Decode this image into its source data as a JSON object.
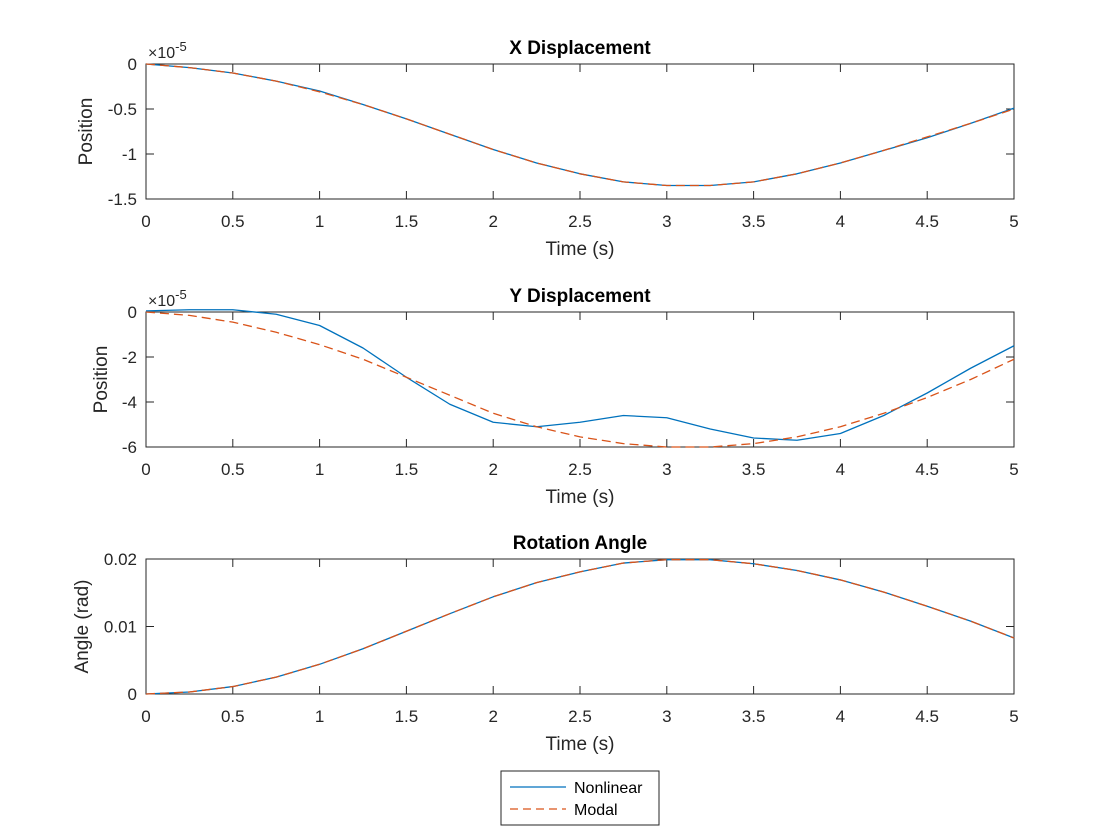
{
  "colors": {
    "nonlinear": "#0072BD",
    "modal": "#D95319",
    "axis": "#262626"
  },
  "legend": {
    "placement": "bottom-center",
    "entries": [
      "Nonlinear",
      "Modal"
    ]
  },
  "chart_data": [
    {
      "type": "line",
      "title": "X Displacement",
      "xlabel": "Time (s)",
      "ylabel": "Position",
      "exponent_label": "×10",
      "exponent_power": "-5",
      "xlim": [
        0,
        5
      ],
      "ylim": [
        -1.5,
        0
      ],
      "x_ticks": [
        0,
        0.5,
        1,
        1.5,
        2,
        2.5,
        3,
        3.5,
        4,
        4.5,
        5
      ],
      "x_tick_labels": [
        "0",
        "0.5",
        "1",
        "1.5",
        "2",
        "2.5",
        "3",
        "3.5",
        "4",
        "4.5",
        "5"
      ],
      "y_ticks": [
        0,
        -0.5,
        -1,
        -1.5
      ],
      "y_tick_labels": [
        "0",
        "-0.5",
        "-1",
        "-1.5"
      ],
      "x": [
        0,
        0.25,
        0.5,
        0.75,
        1,
        1.25,
        1.5,
        1.75,
        2,
        2.25,
        2.5,
        2.75,
        3,
        3.25,
        3.5,
        3.75,
        4,
        4.25,
        4.5,
        4.75,
        5
      ],
      "series": [
        {
          "name": "Nonlinear",
          "style": "solid",
          "values": [
            0,
            -0.04,
            -0.1,
            -0.19,
            -0.3,
            -0.45,
            -0.61,
            -0.78,
            -0.95,
            -1.1,
            -1.22,
            -1.31,
            -1.35,
            -1.35,
            -1.31,
            -1.22,
            -1.1,
            -0.96,
            -0.82,
            -0.66,
            -0.49
          ]
        },
        {
          "name": "Modal",
          "style": "dashed",
          "values": [
            0,
            -0.04,
            -0.1,
            -0.19,
            -0.31,
            -0.45,
            -0.61,
            -0.78,
            -0.95,
            -1.1,
            -1.22,
            -1.31,
            -1.35,
            -1.35,
            -1.31,
            -1.22,
            -1.1,
            -0.96,
            -0.81,
            -0.66,
            -0.5
          ]
        }
      ]
    },
    {
      "type": "line",
      "title": "Y Displacement",
      "xlabel": "Time (s)",
      "ylabel": "Position",
      "exponent_label": "×10",
      "exponent_power": "-5",
      "xlim": [
        0,
        5
      ],
      "ylim": [
        -6,
        0
      ],
      "x_ticks": [
        0,
        0.5,
        1,
        1.5,
        2,
        2.5,
        3,
        3.5,
        4,
        4.5,
        5
      ],
      "x_tick_labels": [
        "0",
        "0.5",
        "1",
        "1.5",
        "2",
        "2.5",
        "3",
        "3.5",
        "4",
        "4.5",
        "5"
      ],
      "y_ticks": [
        0,
        -2,
        -4,
        -6
      ],
      "y_tick_labels": [
        "0",
        "-2",
        "-4",
        "-6"
      ],
      "x": [
        0,
        0.25,
        0.5,
        0.75,
        1,
        1.25,
        1.5,
        1.75,
        2,
        2.25,
        2.5,
        2.75,
        3,
        3.25,
        3.5,
        3.75,
        4,
        4.25,
        4.5,
        4.75,
        5
      ],
      "series": [
        {
          "name": "Nonlinear",
          "style": "solid",
          "values": [
            0.05,
            0.1,
            0.1,
            -0.1,
            -0.6,
            -1.6,
            -2.9,
            -4.1,
            -4.9,
            -5.1,
            -4.9,
            -4.6,
            -4.7,
            -5.2,
            -5.6,
            -5.7,
            -5.4,
            -4.6,
            -3.6,
            -2.5,
            -1.5
          ]
        },
        {
          "name": "Modal",
          "style": "dashed",
          "values": [
            0,
            -0.15,
            -0.45,
            -0.9,
            -1.45,
            -2.1,
            -2.9,
            -3.7,
            -4.5,
            -5.1,
            -5.55,
            -5.85,
            -6,
            -6,
            -5.85,
            -5.55,
            -5.1,
            -4.5,
            -3.8,
            -3.0,
            -2.1
          ]
        }
      ]
    },
    {
      "type": "line",
      "title": "Rotation Angle",
      "xlabel": "Time (s)",
      "ylabel": "Angle (rad)",
      "xlim": [
        0,
        5
      ],
      "ylim": [
        0,
        0.02
      ],
      "x_ticks": [
        0,
        0.5,
        1,
        1.5,
        2,
        2.5,
        3,
        3.5,
        4,
        4.5,
        5
      ],
      "x_tick_labels": [
        "0",
        "0.5",
        "1",
        "1.5",
        "2",
        "2.5",
        "3",
        "3.5",
        "4",
        "4.5",
        "5"
      ],
      "y_ticks": [
        0,
        0.01,
        0.02
      ],
      "y_tick_labels": [
        "0",
        "0.01",
        "0.02"
      ],
      "x": [
        0,
        0.25,
        0.5,
        0.75,
        1,
        1.25,
        1.5,
        1.75,
        2,
        2.25,
        2.5,
        2.75,
        3,
        3.25,
        3.5,
        3.75,
        4,
        4.25,
        4.5,
        4.75,
        5
      ],
      "series": [
        {
          "name": "Nonlinear",
          "style": "solid",
          "values": [
            0,
            0.0003,
            0.0011,
            0.0025,
            0.0044,
            0.0067,
            0.0093,
            0.0119,
            0.0144,
            0.0165,
            0.0181,
            0.0194,
            0.0199,
            0.0199,
            0.0193,
            0.0183,
            0.0169,
            0.0151,
            0.013,
            0.0108,
            0.0083
          ]
        },
        {
          "name": "Modal",
          "style": "dashed",
          "values": [
            0,
            0.0003,
            0.0011,
            0.0025,
            0.0044,
            0.0067,
            0.0093,
            0.0119,
            0.0144,
            0.0165,
            0.0181,
            0.0194,
            0.0199,
            0.0199,
            0.0193,
            0.0183,
            0.0169,
            0.0151,
            0.013,
            0.0108,
            0.0083
          ]
        }
      ]
    }
  ]
}
